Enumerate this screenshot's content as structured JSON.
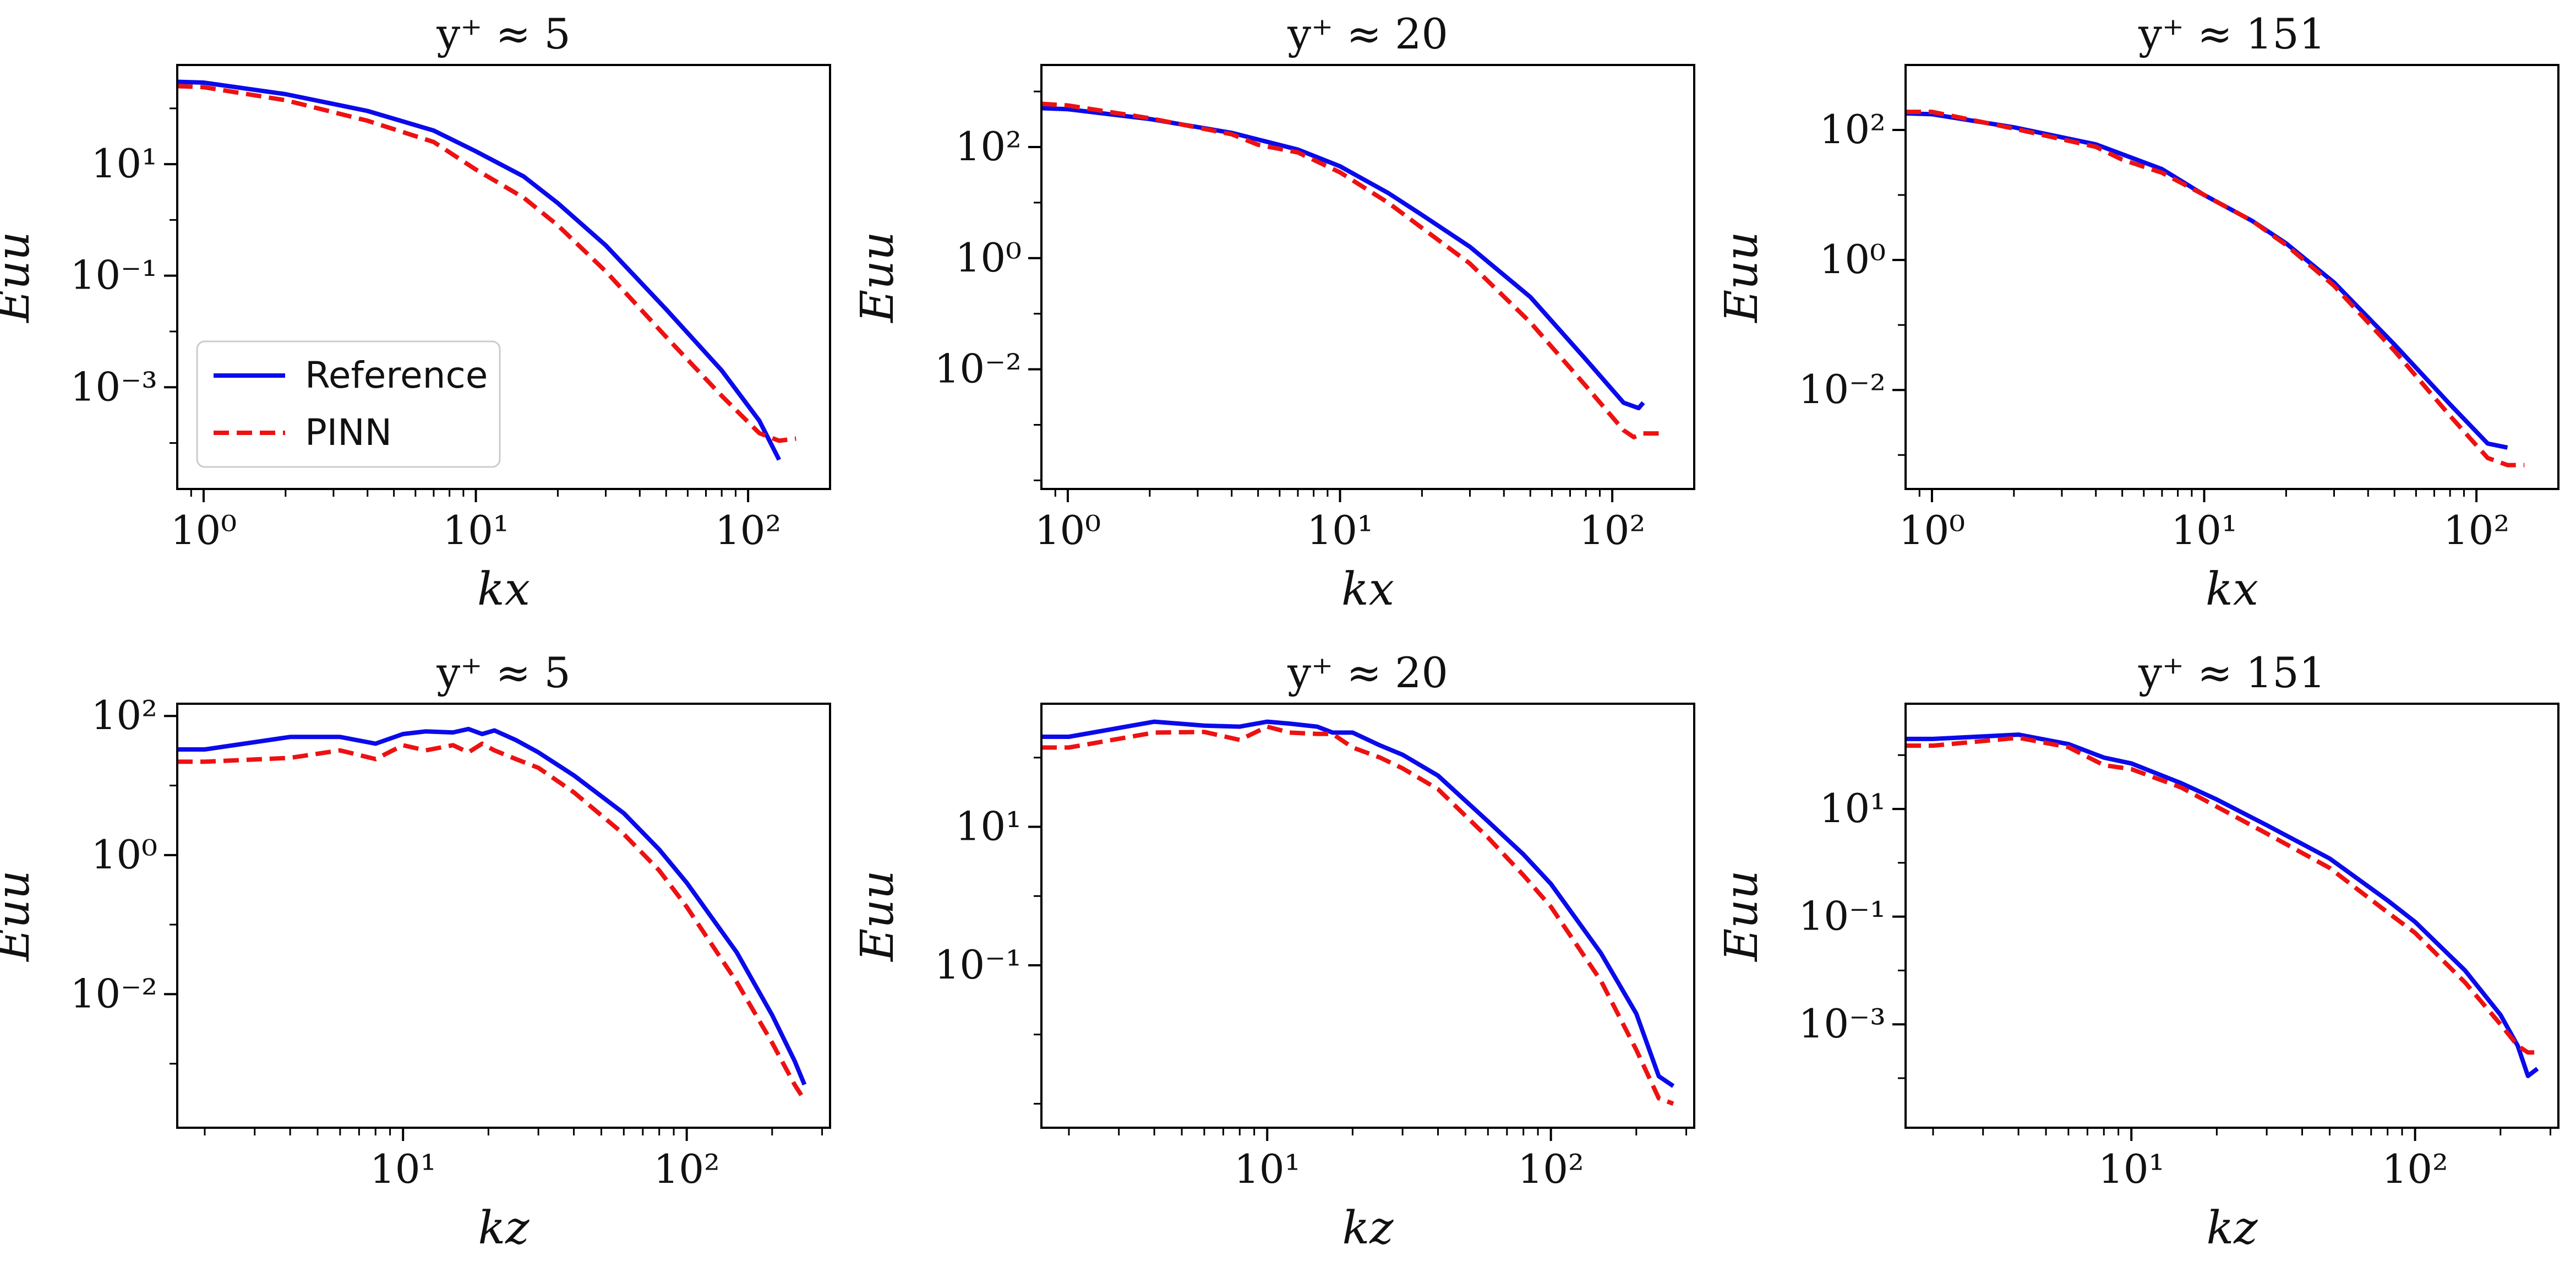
{
  "colors": {
    "reference": "#0a0aeb",
    "pinn": "#ee1111",
    "axes": "#000000"
  },
  "legend": {
    "placement": "lower-left",
    "panel": 0,
    "entries": [
      "Reference",
      "PINN"
    ]
  },
  "chart_data": [
    {
      "type": "line",
      "scale": "log-log",
      "title": "y⁺ ≈ 5",
      "xlabel": "kx",
      "ylabel": "Euu",
      "xlim": [
        0.8,
        200
      ],
      "ylim": [
        1.5e-05,
        600
      ],
      "xticks": [
        {
          "v": 1,
          "label": "10⁰"
        },
        {
          "v": 10,
          "label": "10¹"
        },
        {
          "v": 100,
          "label": "10²"
        }
      ],
      "yticks": [
        {
          "v": 10,
          "label": "10¹"
        },
        {
          "v": 0.1,
          "label": "10⁻¹"
        },
        {
          "v": 0.001,
          "label": "10⁻³"
        }
      ],
      "series": [
        {
          "name": "Reference",
          "style": "solid",
          "points": [
            [
              0.8,
              300
            ],
            [
              1,
              290
            ],
            [
              2,
              180
            ],
            [
              4,
              90
            ],
            [
              7,
              40
            ],
            [
              10,
              17
            ],
            [
              15,
              6
            ],
            [
              20,
              2
            ],
            [
              30,
              0.35
            ],
            [
              50,
              0.025
            ],
            [
              80,
              0.002
            ],
            [
              110,
              0.00025
            ],
            [
              130,
              5e-05
            ]
          ]
        },
        {
          "name": "PINN",
          "style": "dashed",
          "points": [
            [
              0.8,
              250
            ],
            [
              1,
              240
            ],
            [
              2,
              140
            ],
            [
              4,
              60
            ],
            [
              7,
              25
            ],
            [
              10,
              8
            ],
            [
              15,
              2.5
            ],
            [
              20,
              0.8
            ],
            [
              30,
              0.12
            ],
            [
              50,
              0.008
            ],
            [
              80,
              0.0007
            ],
            [
              110,
              0.00015
            ],
            [
              130,
              0.00011
            ],
            [
              150,
              0.00012
            ]
          ]
        }
      ]
    },
    {
      "type": "line",
      "scale": "log-log",
      "title": "y⁺ ≈ 20",
      "xlabel": "kx",
      "ylabel": "Euu",
      "xlim": [
        0.8,
        200
      ],
      "ylim": [
        7e-05,
        3000
      ],
      "xticks": [
        {
          "v": 1,
          "label": "10⁰"
        },
        {
          "v": 10,
          "label": "10¹"
        },
        {
          "v": 100,
          "label": "10²"
        }
      ],
      "yticks": [
        {
          "v": 100,
          "label": "10²"
        },
        {
          "v": 1,
          "label": "10⁰"
        },
        {
          "v": 0.01,
          "label": "10⁻²"
        }
      ],
      "series": [
        {
          "name": "Reference",
          "style": "solid",
          "points": [
            [
              0.8,
              500
            ],
            [
              1,
              480
            ],
            [
              2,
              320
            ],
            [
              4,
              180
            ],
            [
              7,
              90
            ],
            [
              10,
              45
            ],
            [
              15,
              15
            ],
            [
              20,
              6
            ],
            [
              30,
              1.6
            ],
            [
              50,
              0.2
            ],
            [
              80,
              0.015
            ],
            [
              110,
              0.0025
            ],
            [
              125,
              0.002
            ],
            [
              130,
              0.0025
            ]
          ]
        },
        {
          "name": "PINN",
          "style": "dashed",
          "points": [
            [
              0.8,
              600
            ],
            [
              1,
              560
            ],
            [
              2,
              330
            ],
            [
              4,
              170
            ],
            [
              5,
              110
            ],
            [
              7,
              80
            ],
            [
              10,
              35
            ],
            [
              15,
              10
            ],
            [
              20,
              3.5
            ],
            [
              30,
              0.8
            ],
            [
              50,
              0.07
            ],
            [
              80,
              0.005
            ],
            [
              110,
              0.0008
            ],
            [
              120,
              0.0006
            ],
            [
              130,
              0.0007
            ],
            [
              150,
              0.0007
            ]
          ]
        }
      ]
    },
    {
      "type": "line",
      "scale": "log-log",
      "title": "y⁺ ≈ 151",
      "xlabel": "kx",
      "ylabel": "Euu",
      "xlim": [
        0.8,
        200
      ],
      "ylim": [
        0.0003,
        1000
      ],
      "xticks": [
        {
          "v": 1,
          "label": "10⁰"
        },
        {
          "v": 10,
          "label": "10¹"
        },
        {
          "v": 100,
          "label": "10²"
        }
      ],
      "yticks": [
        {
          "v": 100,
          "label": "10²"
        },
        {
          "v": 1,
          "label": "10⁰"
        },
        {
          "v": 0.01,
          "label": "10⁻²"
        }
      ],
      "series": [
        {
          "name": "Reference",
          "style": "solid",
          "points": [
            [
              0.8,
              180
            ],
            [
              1,
              175
            ],
            [
              2,
              110
            ],
            [
              4,
              60
            ],
            [
              7,
              25
            ],
            [
              10,
              10
            ],
            [
              15,
              4
            ],
            [
              20,
              1.8
            ],
            [
              30,
              0.45
            ],
            [
              50,
              0.05
            ],
            [
              80,
              0.006
            ],
            [
              110,
              0.0015
            ],
            [
              130,
              0.0013
            ]
          ]
        },
        {
          "name": "PINN",
          "style": "dashed",
          "points": [
            [
              0.8,
              190
            ],
            [
              1,
              190
            ],
            [
              2,
              105
            ],
            [
              4,
              55
            ],
            [
              5,
              35
            ],
            [
              7,
              22
            ],
            [
              10,
              10
            ],
            [
              15,
              4
            ],
            [
              20,
              1.7
            ],
            [
              30,
              0.4
            ],
            [
              50,
              0.04
            ],
            [
              80,
              0.004
            ],
            [
              110,
              0.0009
            ],
            [
              130,
              0.0007
            ],
            [
              150,
              0.0007
            ]
          ]
        }
      ]
    },
    {
      "type": "line",
      "scale": "log-log",
      "title": "y⁺ ≈ 5",
      "xlabel": "kz",
      "ylabel": "Euu",
      "xlim": [
        1.6,
        320
      ],
      "ylim": [
        0.00012,
        150
      ],
      "xticks": [
        {
          "v": 10,
          "label": "10¹"
        },
        {
          "v": 100,
          "label": "10²"
        }
      ],
      "yticks": [
        {
          "v": 100,
          "label": "10²"
        },
        {
          "v": 1,
          "label": "10⁰"
        },
        {
          "v": 0.01,
          "label": "10⁻²"
        }
      ],
      "series": [
        {
          "name": "Reference",
          "style": "solid",
          "points": [
            [
              1.6,
              33
            ],
            [
              2,
              33
            ],
            [
              4,
              50
            ],
            [
              6,
              50
            ],
            [
              8,
              40
            ],
            [
              10,
              55
            ],
            [
              12,
              60
            ],
            [
              15,
              58
            ],
            [
              17,
              65
            ],
            [
              19,
              55
            ],
            [
              21,
              62
            ],
            [
              25,
              45
            ],
            [
              30,
              30
            ],
            [
              40,
              14
            ],
            [
              60,
              4
            ],
            [
              80,
              1.2
            ],
            [
              100,
              0.4
            ],
            [
              150,
              0.04
            ],
            [
              200,
              0.005
            ],
            [
              240,
              0.0011
            ],
            [
              260,
              0.0005
            ]
          ]
        },
        {
          "name": "PINN",
          "style": "dashed",
          "points": [
            [
              1.6,
              22
            ],
            [
              2,
              22
            ],
            [
              4,
              25
            ],
            [
              6,
              32
            ],
            [
              8,
              24
            ],
            [
              10,
              38
            ],
            [
              12,
              32
            ],
            [
              15,
              38
            ],
            [
              17,
              30
            ],
            [
              19,
              40
            ],
            [
              21,
              32
            ],
            [
              25,
              24
            ],
            [
              30,
              18
            ],
            [
              40,
              8
            ],
            [
              60,
              2
            ],
            [
              80,
              0.6
            ],
            [
              100,
              0.18
            ],
            [
              150,
              0.015
            ],
            [
              200,
              0.002
            ],
            [
              240,
              0.0005
            ],
            [
              260,
              0.0003
            ]
          ]
        }
      ]
    },
    {
      "type": "line",
      "scale": "log-log",
      "title": "y⁺ ≈ 20",
      "xlabel": "kz",
      "ylabel": "Euu",
      "xlim": [
        1.6,
        320
      ],
      "ylim": [
        0.00045,
        600
      ],
      "xticks": [
        {
          "v": 10,
          "label": "10¹"
        },
        {
          "v": 100,
          "label": "10²"
        }
      ],
      "yticks": [
        {
          "v": 10,
          "label": "10¹"
        },
        {
          "v": 0.1,
          "label": "10⁻¹"
        }
      ],
      "series": [
        {
          "name": "Reference",
          "style": "solid",
          "points": [
            [
              1.6,
              200
            ],
            [
              2,
              200
            ],
            [
              4,
              330
            ],
            [
              6,
              290
            ],
            [
              8,
              280
            ],
            [
              10,
              330
            ],
            [
              12,
              310
            ],
            [
              15,
              280
            ],
            [
              17,
              230
            ],
            [
              20,
              230
            ],
            [
              25,
              150
            ],
            [
              30,
              110
            ],
            [
              40,
              55
            ],
            [
              60,
              12
            ],
            [
              80,
              4
            ],
            [
              100,
              1.5
            ],
            [
              150,
              0.15
            ],
            [
              200,
              0.02
            ],
            [
              240,
              0.0025
            ],
            [
              270,
              0.0018
            ]
          ]
        },
        {
          "name": "PINN",
          "style": "dashed",
          "points": [
            [
              1.6,
              140
            ],
            [
              2,
              140
            ],
            [
              4,
              230
            ],
            [
              6,
              235
            ],
            [
              8,
              180
            ],
            [
              10,
              280
            ],
            [
              12,
              230
            ],
            [
              15,
              220
            ],
            [
              17,
              220
            ],
            [
              20,
              140
            ],
            [
              25,
              100
            ],
            [
              30,
              70
            ],
            [
              40,
              35
            ],
            [
              60,
              7
            ],
            [
              80,
              2
            ],
            [
              100,
              0.7
            ],
            [
              150,
              0.06
            ],
            [
              200,
              0.006
            ],
            [
              240,
              0.0012
            ],
            [
              270,
              0.001
            ]
          ]
        }
      ]
    },
    {
      "type": "line",
      "scale": "log-log",
      "title": "y⁺ ≈ 151",
      "xlabel": "kz",
      "ylabel": "Euu",
      "xlim": [
        1.6,
        320
      ],
      "ylim": [
        1.2e-05,
        900
      ],
      "xticks": [
        {
          "v": 10,
          "label": "10¹"
        },
        {
          "v": 100,
          "label": "10²"
        }
      ],
      "yticks": [
        {
          "v": 10,
          "label": "10¹"
        },
        {
          "v": 0.1,
          "label": "10⁻¹"
        },
        {
          "v": 0.001,
          "label": "10⁻³"
        }
      ],
      "series": [
        {
          "name": "Reference",
          "style": "solid",
          "points": [
            [
              1.6,
              200
            ],
            [
              2,
              200
            ],
            [
              4,
              240
            ],
            [
              6,
              160
            ],
            [
              8,
              90
            ],
            [
              10,
              70
            ],
            [
              15,
              30
            ],
            [
              20,
              15
            ],
            [
              30,
              5
            ],
            [
              50,
              1.2
            ],
            [
              80,
              0.2
            ],
            [
              100,
              0.08
            ],
            [
              150,
              0.01
            ],
            [
              200,
              0.0015
            ],
            [
              230,
              0.0004
            ],
            [
              250,
              0.00011
            ],
            [
              270,
              0.00015
            ]
          ]
        },
        {
          "name": "PINN",
          "style": "dashed",
          "points": [
            [
              1.6,
              150
            ],
            [
              2,
              150
            ],
            [
              4,
              210
            ],
            [
              6,
              140
            ],
            [
              8,
              65
            ],
            [
              10,
              55
            ],
            [
              15,
              25
            ],
            [
              20,
              11
            ],
            [
              30,
              3.5
            ],
            [
              50,
              0.8
            ],
            [
              80,
              0.12
            ],
            [
              100,
              0.05
            ],
            [
              150,
              0.006
            ],
            [
              200,
              0.001
            ],
            [
              230,
              0.0004
            ],
            [
              250,
              0.0003
            ],
            [
              270,
              0.0003
            ]
          ]
        }
      ]
    }
  ]
}
